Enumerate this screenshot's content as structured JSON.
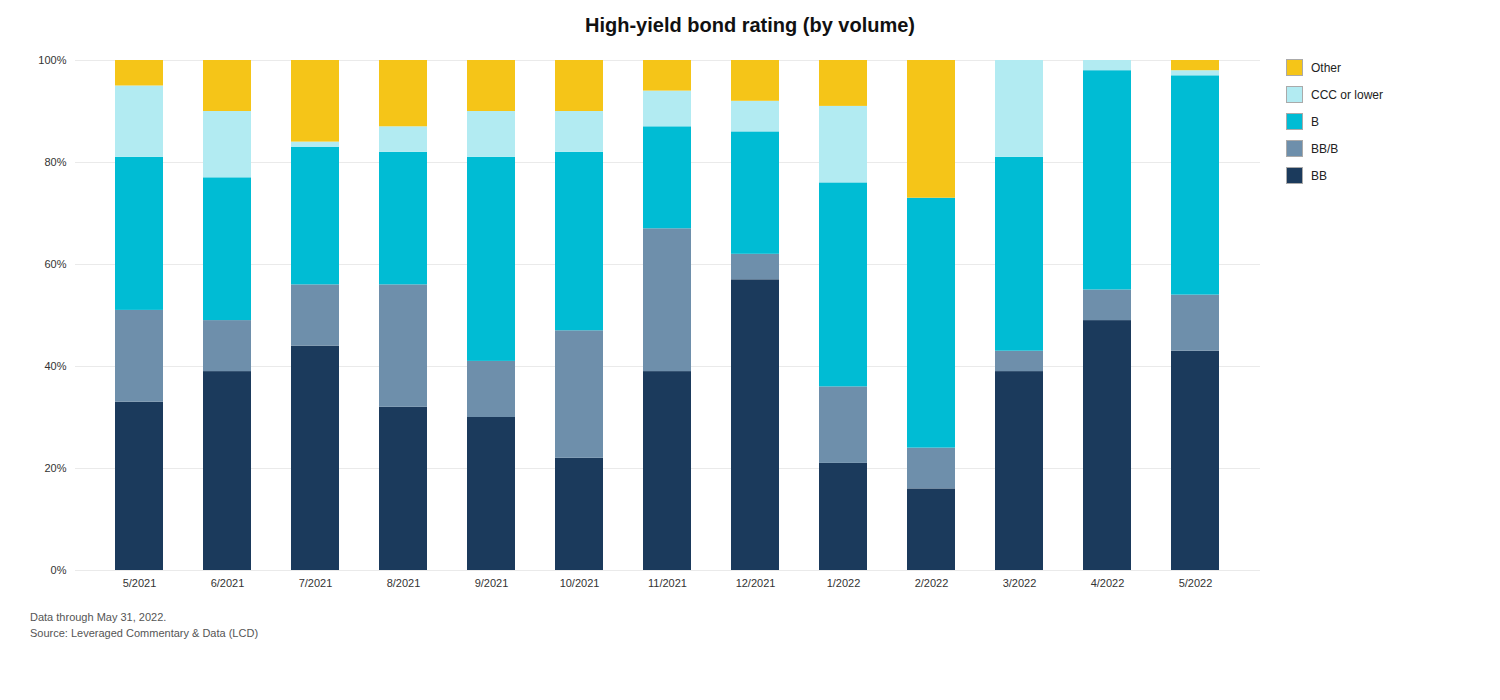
{
  "chart_data": {
    "type": "bar",
    "title": "High-yield bond rating (by volume)",
    "stacked": true,
    "categories": [
      "5/2021",
      "6/2021",
      "7/2021",
      "8/2021",
      "9/2021",
      "10/2021",
      "11/2021",
      "12/2021",
      "1/2022",
      "2/2022",
      "3/2022",
      "4/2022",
      "5/2022"
    ],
    "series": [
      {
        "name": "BB",
        "color": "#1B3A5C",
        "values": [
          33,
          39,
          44,
          32,
          30,
          22,
          39,
          57,
          21,
          16,
          39,
          49,
          43
        ]
      },
      {
        "name": "BB/B",
        "color": "#6E8FAB",
        "values": [
          18,
          10,
          12,
          24,
          11,
          25,
          28,
          5,
          15,
          8,
          4,
          6,
          11
        ]
      },
      {
        "name": "B",
        "color": "#00BCD4",
        "values": [
          30,
          28,
          27,
          26,
          40,
          35,
          20,
          24,
          40,
          49,
          38,
          43,
          43
        ]
      },
      {
        "name": "CCC or lower",
        "color": "#B2EBF2",
        "values": [
          14,
          13,
          1,
          5,
          9,
          8,
          7,
          6,
          15,
          0,
          19,
          2,
          1
        ]
      },
      {
        "name": "Other",
        "color": "#F5C518",
        "values": [
          5,
          10,
          16,
          13,
          10,
          10,
          6,
          8,
          9,
          27,
          0,
          0,
          2
        ]
      }
    ],
    "ylim": [
      0,
      100
    ],
    "yticks": [
      {
        "value": 0,
        "label": "0%"
      },
      {
        "value": 20,
        "label": "20%"
      },
      {
        "value": 40,
        "label": "40%"
      },
      {
        "value": 60,
        "label": "60%"
      },
      {
        "value": 80,
        "label": "80%"
      },
      {
        "value": 100,
        "label": "100%"
      }
    ],
    "grid": true,
    "legend": "right",
    "footnotes": [
      "Data through May 31, 2022.",
      "Source: Leveraged Commentary & Data (LCD)"
    ]
  }
}
